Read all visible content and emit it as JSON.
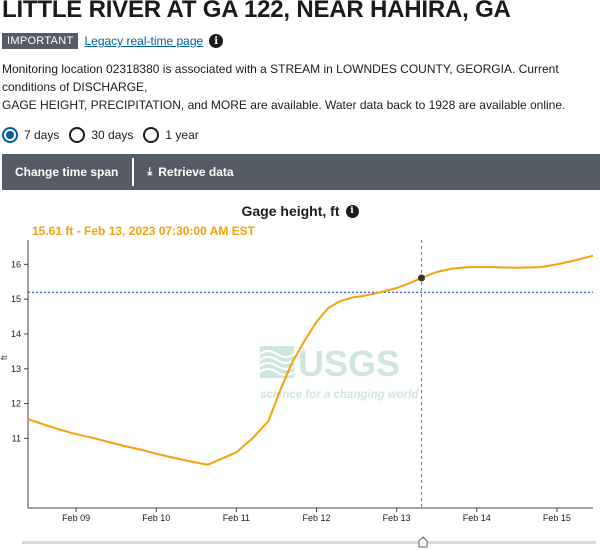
{
  "header": {
    "title": "LITTLE RIVER AT GA 122, NEAR HAHIRA, GA",
    "badge": "IMPORTANT",
    "legacy_link": "Legacy real-time page",
    "description": "Monitoring location 02318380 is associated with a STREAM in LOWNDES COUNTY, GEORGIA. Current conditions of DISCHARGE,\nGAGE HEIGHT, PRECIPITATION, and MORE are available. Water data back to 1928 are available online."
  },
  "time_options": [
    {
      "label": "7 days",
      "checked": true
    },
    {
      "label": "30 days",
      "checked": false
    },
    {
      "label": "1 year",
      "checked": false
    }
  ],
  "toolbar": {
    "change_time_span": "Change time span",
    "retrieve_data": "Retrieve data"
  },
  "chart_title": "Gage height, ft",
  "readout": "15.61 ft - Feb 13, 2023 07:30:00 AM EST",
  "watermark": {
    "brand": "USGS",
    "tagline": "science for a changing world"
  },
  "colors": {
    "series": "#f7a00a",
    "reference_line": "#0033cc",
    "toolbar": "#565c65",
    "link": "#005ea2"
  },
  "chart_data": {
    "type": "line",
    "title": "Gage height, ft",
    "ylabel": "ft",
    "ylim": [
      9.0,
      16.7
    ],
    "yticks": [
      11,
      12,
      13,
      14,
      15,
      16
    ],
    "xlim": [
      8.4,
      15.45
    ],
    "xticks": [
      {
        "v": 9,
        "label": "Feb 09"
      },
      {
        "v": 10,
        "label": "Feb 10"
      },
      {
        "v": 11,
        "label": "Feb 11"
      },
      {
        "v": 12,
        "label": "Feb 12"
      },
      {
        "v": 13,
        "label": "Feb 13"
      },
      {
        "v": 14,
        "label": "Feb 14"
      },
      {
        "v": 15,
        "label": "Feb 15"
      }
    ],
    "reference_value": 15.2,
    "cursor": {
      "x": 13.31,
      "y": 15.61
    },
    "series": [
      {
        "color": "#f7a00a",
        "x": [
          8.4,
          8.6,
          8.8,
          9.0,
          9.2,
          9.4,
          9.6,
          9.8,
          10.0,
          10.2,
          10.4,
          10.6,
          10.65,
          10.8,
          11.0,
          11.2,
          11.4,
          11.55,
          11.7,
          11.85,
          12.0,
          12.15,
          12.3,
          12.45,
          12.6,
          12.8,
          13.0,
          13.15,
          13.31,
          13.5,
          13.7,
          13.9,
          14.2,
          14.5,
          14.8,
          15.0,
          15.2,
          15.45
        ],
        "y": [
          11.55,
          11.4,
          11.25,
          11.12,
          11.02,
          10.9,
          10.78,
          10.68,
          10.56,
          10.45,
          10.35,
          10.26,
          10.25,
          10.4,
          10.6,
          11.0,
          11.5,
          12.4,
          13.2,
          13.8,
          14.35,
          14.75,
          14.95,
          15.05,
          15.1,
          15.2,
          15.32,
          15.45,
          15.61,
          15.78,
          15.88,
          15.92,
          15.92,
          15.9,
          15.92,
          16.0,
          16.1,
          16.25
        ]
      }
    ]
  }
}
